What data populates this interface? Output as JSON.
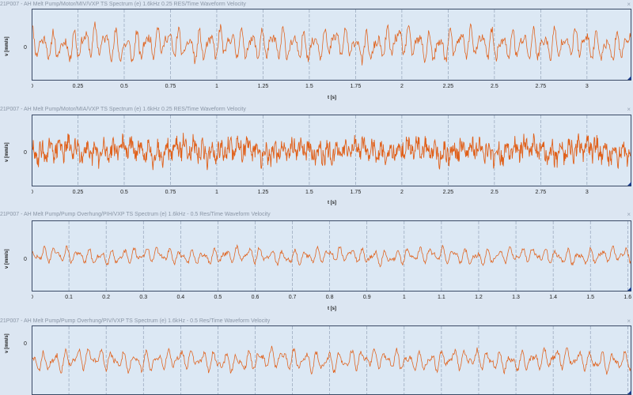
{
  "accent": "#e0601a",
  "icons": {
    "close": "close-icon",
    "cursor": "triangle-marker-icon"
  },
  "panels": [
    {
      "title": "21P007 - AH Melt Pump/Motor/MIV/VXP TS Spectrum (e) 1.6kHz 0.25 RES/Time Waveform Velocity",
      "close_label": "×",
      "ylabel": "v [mm/s]",
      "xlabel": "t [s]",
      "zero_label": "0",
      "chart_data": {
        "type": "line",
        "title": "21P007 - AH Melt Pump/Motor/MIV/VXP TS Spectrum (e) 1.6kHz 0.25 RES/Time Waveform Velocity",
        "xlabel": "t [s]",
        "ylabel": "v [mm/s]",
        "xlim": [
          0,
          3.24
        ],
        "xticks": [
          "0",
          "0.25",
          "0.5",
          "0.75",
          "1",
          "1.25",
          "1.5",
          "1.75",
          "2",
          "2.25",
          "2.5",
          "2.75",
          "3"
        ],
        "xtick_values": [
          0,
          0.25,
          0.5,
          0.75,
          1,
          1.25,
          1.5,
          1.75,
          2,
          2.25,
          2.5,
          2.75,
          3
        ],
        "yticks": [
          "0"
        ],
        "grid": true,
        "series_color": "#e0601a",
        "style": "medium",
        "amplitude": 0.55,
        "seed": 11
      }
    },
    {
      "title": "21P007 - AH Melt Pump/Motor/MIA/VXP TS Spectrum (e) 1.6kHz 0.25 RES/Time Waveform Velocity",
      "close_label": "×",
      "ylabel": "v [mm/s]",
      "xlabel": "t [s]",
      "zero_label": "0",
      "chart_data": {
        "type": "line",
        "title": "21P007 - AH Melt Pump/Motor/MIA/VXP TS Spectrum (e) 1.6kHz 0.25 RES/Time Waveform Velocity",
        "xlabel": "t [s]",
        "ylabel": "v [mm/s]",
        "xlim": [
          0,
          3.24
        ],
        "xticks": [
          "0",
          "0.25",
          "0.5",
          "0.75",
          "1",
          "1.25",
          "1.5",
          "1.75",
          "2",
          "2.25",
          "2.5",
          "2.75",
          "3"
        ],
        "xtick_values": [
          0,
          0.25,
          0.5,
          0.75,
          1,
          1.25,
          1.5,
          1.75,
          2,
          2.25,
          2.5,
          2.75,
          3
        ],
        "yticks": [
          "0"
        ],
        "grid": true,
        "series_color": "#e0601a",
        "style": "dense",
        "amplitude": 0.45,
        "seed": 29
      }
    },
    {
      "title": "21P007 - AH Melt Pump/Pump Overhung/PIH/VXP TS Spectrum (e) 1.6kHz - 0.5 Res/Time Waveform Velocity",
      "close_label": "×",
      "ylabel": "v [mm/s]",
      "xlabel": "t [s]",
      "zero_label": "0",
      "chart_data": {
        "type": "line",
        "title": "21P007 - AH Melt Pump/Pump Overhung/PIH/VXP TS Spectrum (e) 1.6kHz - 0.5 Res/Time Waveform Velocity",
        "xlabel": "t [s]",
        "ylabel": "v [mm/s]",
        "xlim": [
          0,
          1.61
        ],
        "xticks": [
          "0",
          "0.1",
          "0.2",
          "0.3",
          "0.4",
          "0.5",
          "0.6",
          "0.7",
          "0.8",
          "0.9",
          "1",
          "1.1",
          "1.2",
          "1.3",
          "1.4",
          "1.5",
          "1.6"
        ],
        "xtick_values": [
          0,
          0.1,
          0.2,
          0.3,
          0.4,
          0.5,
          0.6,
          0.7,
          0.8,
          0.9,
          1,
          1.1,
          1.2,
          1.3,
          1.4,
          1.5,
          1.6
        ],
        "yticks": [
          "0"
        ],
        "grid": true,
        "series_color": "#e0601a",
        "style": "light",
        "amplitude": 0.3,
        "seed": 47
      }
    },
    {
      "title": "21P007 - AH Melt Pump/Pump Overhung/PIV/VXP TS Spectrum (e) 1.6kHz - 0.5 Res/Time Waveform Velocity",
      "close_label": "×",
      "ylabel": "v [mm/s]",
      "xlabel": "",
      "zero_label": "0",
      "chart_data": {
        "type": "line",
        "title": "21P007 - AH Melt Pump/Pump Overhung/PIV/VXP TS Spectrum (e) 1.6kHz - 0.5 Res/Time Waveform Velocity",
        "xlabel": "",
        "ylabel": "v [mm/s]",
        "xlim": [
          0,
          1.61
        ],
        "xticks": [],
        "xtick_values": [
          0,
          0.1,
          0.2,
          0.3,
          0.4,
          0.5,
          0.6,
          0.7,
          0.8,
          0.9,
          1,
          1.1,
          1.2,
          1.3,
          1.4,
          1.5,
          1.6
        ],
        "yticks": [
          "0"
        ],
        "grid": true,
        "series_color": "#e0601a",
        "style": "light",
        "amplitude": 0.4,
        "seed": 83
      }
    }
  ]
}
